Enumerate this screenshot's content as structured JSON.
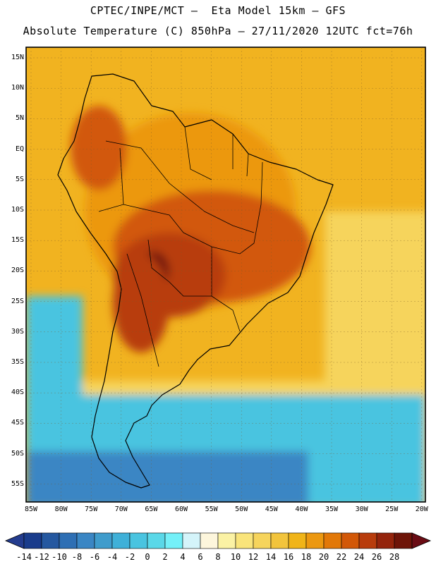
{
  "title_line1": "CPTEC/INPE/MCT —  Eta Model 15km — GFS",
  "title_line2": "Absolute Temperature (C) 850hPa — 27/11/2020 12UTC fct=76h",
  "map": {
    "lat_ticks": [
      "15N",
      "10N",
      "5N",
      "EQ",
      "5S",
      "10S",
      "15S",
      "20S",
      "25S",
      "30S",
      "35S",
      "40S",
      "45S",
      "50S",
      "55S"
    ],
    "lon_ticks": [
      "85W",
      "80W",
      "75W",
      "70W",
      "65W",
      "60W",
      "55W",
      "50W",
      "45W",
      "40W",
      "35W",
      "30W",
      "25W",
      "20W"
    ]
  },
  "colorbar": {
    "labels": [
      "-14",
      "-12",
      "-10",
      "-8",
      "-6",
      "-4",
      "-2",
      "0",
      "2",
      "4",
      "6",
      "8",
      "10",
      "12",
      "14",
      "16",
      "18",
      "20",
      "22",
      "24",
      "26",
      "28"
    ],
    "colors": [
      "#1a3c8c",
      "#2558a0",
      "#2e6fb4",
      "#3a86c4",
      "#3f9ccc",
      "#3fb0d8",
      "#49c4e0",
      "#5ad8e8",
      "#74f0f8",
      "#d4f4fa",
      "#fdf6dc",
      "#fbf2a4",
      "#f9e47a",
      "#f6d45c",
      "#f2c43c",
      "#f0b418",
      "#ec9810",
      "#e27808",
      "#d25808",
      "#b83c0c",
      "#94240c",
      "#6e1408"
    ],
    "low_color": "#243c8e",
    "high_color": "#6a0c14"
  },
  "colors": {
    "ocean_warm": "#f1b320",
    "ocean_mid": "#f6d45c",
    "land_base": "#ec9810",
    "land_hot": "#d25808",
    "land_hotter": "#b83c0c",
    "core": "#6e1408",
    "south_cold": "#49c4e0",
    "south_colder": "#3a86c4"
  }
}
